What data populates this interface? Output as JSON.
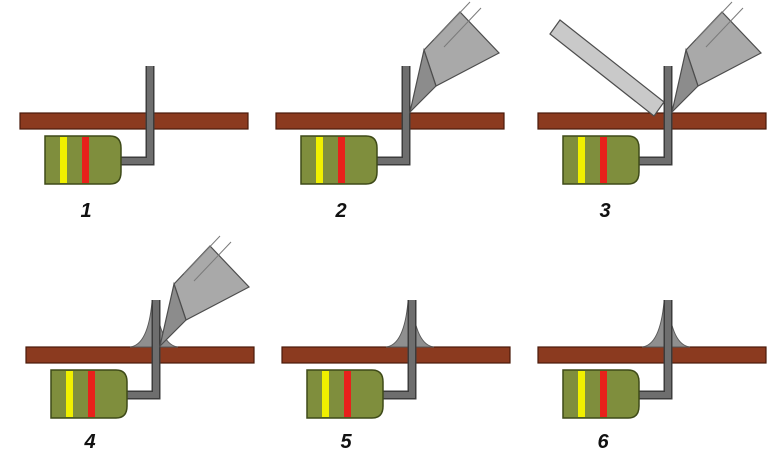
{
  "colors": {
    "board": "#8b3a1f",
    "board_edge": "#4a1a0a",
    "lead": "#6e6e6e",
    "lead_edge": "#3c3c3c",
    "resistor_body": "#7f8e3d",
    "resistor_edge": "#3e4a18",
    "band_yellow": "#f0f000",
    "band_red": "#e8211b",
    "iron": "#a9a9a9",
    "iron_edge": "#4d4d4d",
    "solder_wire": "#c9c9c9",
    "solder": "#8f8f8f"
  },
  "steps": [
    {
      "label": "1",
      "iron": false,
      "wire": false,
      "solder": false
    },
    {
      "label": "2",
      "iron": true,
      "wire": false,
      "solder": false
    },
    {
      "label": "3",
      "iron": true,
      "wire": true,
      "solder": false
    },
    {
      "label": "4",
      "iron": true,
      "wire": false,
      "solder": true
    },
    {
      "label": "5",
      "iron": false,
      "wire": false,
      "solder": true
    },
    {
      "label": "6",
      "iron": false,
      "wire": false,
      "solder": true
    }
  ]
}
